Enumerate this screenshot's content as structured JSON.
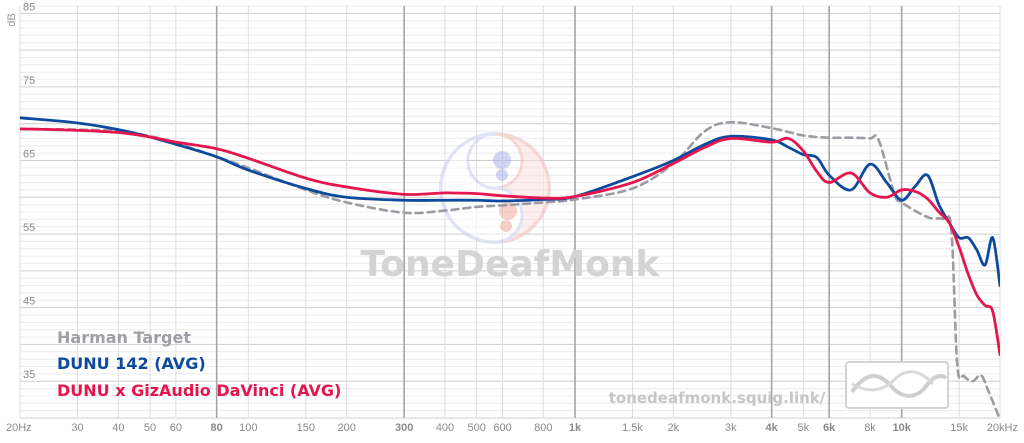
{
  "chart_data": {
    "type": "line",
    "ylabel": "dB",
    "xscale": "log",
    "xlim": [
      20,
      20000
    ],
    "ylim": [
      30,
      86
    ],
    "y_ticks": [
      85,
      75,
      65,
      55,
      45,
      35
    ],
    "x_ticks": [
      {
        "value": 20,
        "label": "20Hz",
        "bold": false
      },
      {
        "value": 30,
        "label": "30",
        "bold": false
      },
      {
        "value": 40,
        "label": "40",
        "bold": false
      },
      {
        "value": 50,
        "label": "50",
        "bold": false
      },
      {
        "value": 60,
        "label": "60",
        "bold": false
      },
      {
        "value": 80,
        "label": "80",
        "bold": true
      },
      {
        "value": 100,
        "label": "100",
        "bold": false
      },
      {
        "value": 150,
        "label": "150",
        "bold": false
      },
      {
        "value": 200,
        "label": "200",
        "bold": false
      },
      {
        "value": 300,
        "label": "300",
        "bold": true
      },
      {
        "value": 400,
        "label": "400",
        "bold": false
      },
      {
        "value": 500,
        "label": "500",
        "bold": false
      },
      {
        "value": 600,
        "label": "600",
        "bold": false
      },
      {
        "value": 800,
        "label": "800",
        "bold": false
      },
      {
        "value": 1000,
        "label": "1k",
        "bold": true
      },
      {
        "value": 1500,
        "label": "1.5k",
        "bold": false
      },
      {
        "value": 2000,
        "label": "2k",
        "bold": false
      },
      {
        "value": 3000,
        "label": "3k",
        "bold": false
      },
      {
        "value": 4000,
        "label": "4k",
        "bold": true
      },
      {
        "value": 5000,
        "label": "5k",
        "bold": false
      },
      {
        "value": 6000,
        "label": "6k",
        "bold": true
      },
      {
        "value": 8000,
        "label": "8k",
        "bold": false
      },
      {
        "value": 10000,
        "label": "10k",
        "bold": true
      },
      {
        "value": 15000,
        "label": "15k",
        "bold": false
      },
      {
        "value": 20000,
        "label": "20kHz",
        "bold": false
      }
    ],
    "grid": true,
    "legend_position": "bottom-left",
    "series": [
      {
        "name": "Harman Target",
        "color": "#9e9aa2",
        "style": "dashed",
        "points": [
          [
            20,
            69.3
          ],
          [
            30,
            69.2
          ],
          [
            40,
            69.0
          ],
          [
            50,
            68.3
          ],
          [
            60,
            67.4
          ],
          [
            80,
            65.5
          ],
          [
            100,
            64.0
          ],
          [
            150,
            61.0
          ],
          [
            200,
            59.3
          ],
          [
            300,
            57.9
          ],
          [
            400,
            58.2
          ],
          [
            500,
            58.7
          ],
          [
            600,
            58.9
          ],
          [
            800,
            59.3
          ],
          [
            1000,
            59.7
          ],
          [
            1500,
            61.2
          ],
          [
            2000,
            64.6
          ],
          [
            2500,
            69.0
          ],
          [
            3000,
            70.2
          ],
          [
            4000,
            69.4
          ],
          [
            5000,
            68.4
          ],
          [
            6000,
            68.1
          ],
          [
            7000,
            68.1
          ],
          [
            8000,
            68.0
          ],
          [
            8500,
            67.8
          ],
          [
            9500,
            60.5
          ],
          [
            10000,
            59.3
          ],
          [
            12000,
            57.3
          ],
          [
            13500,
            57.0
          ],
          [
            14200,
            55.5
          ],
          [
            14800,
            37.2
          ],
          [
            15500,
            35.7
          ],
          [
            16500,
            35.0
          ],
          [
            17500,
            35.8
          ],
          [
            18500,
            33.5
          ],
          [
            20000,
            29.8
          ]
        ]
      },
      {
        "name": "DUNU 142 (AVG)",
        "color": "#0d4a9e",
        "style": "solid",
        "points": [
          [
            20,
            70.8
          ],
          [
            30,
            70.1
          ],
          [
            40,
            69.2
          ],
          [
            50,
            68.2
          ],
          [
            60,
            67.2
          ],
          [
            80,
            65.5
          ],
          [
            100,
            63.7
          ],
          [
            150,
            61.2
          ],
          [
            200,
            60.0
          ],
          [
            300,
            59.6
          ],
          [
            400,
            59.6
          ],
          [
            500,
            59.6
          ],
          [
            600,
            59.5
          ],
          [
            800,
            59.7
          ],
          [
            1000,
            60.1
          ],
          [
            1500,
            62.8
          ],
          [
            2000,
            65.0
          ],
          [
            2500,
            67.2
          ],
          [
            3000,
            68.3
          ],
          [
            4000,
            67.8
          ],
          [
            4500,
            66.8
          ],
          [
            5000,
            65.8
          ],
          [
            5500,
            65.4
          ],
          [
            6000,
            63.0
          ],
          [
            7000,
            61.0
          ],
          [
            8000,
            64.5
          ],
          [
            9000,
            62.0
          ],
          [
            10000,
            59.6
          ],
          [
            11000,
            61.5
          ],
          [
            12000,
            63.0
          ],
          [
            13000,
            59.0
          ],
          [
            14000,
            56.5
          ],
          [
            15000,
            54.5
          ],
          [
            16000,
            54.5
          ],
          [
            17000,
            52.8
          ],
          [
            18000,
            50.8
          ],
          [
            19000,
            54.5
          ],
          [
            20000,
            48.0
          ]
        ]
      },
      {
        "name": "DUNU x GizAudio DaVinci (AVG)",
        "color": "#e5164d",
        "style": "solid",
        "points": [
          [
            20,
            69.3
          ],
          [
            30,
            69.1
          ],
          [
            40,
            68.8
          ],
          [
            50,
            68.2
          ],
          [
            60,
            67.5
          ],
          [
            80,
            66.6
          ],
          [
            100,
            65.3
          ],
          [
            150,
            62.6
          ],
          [
            200,
            61.4
          ],
          [
            300,
            60.4
          ],
          [
            400,
            60.6
          ],
          [
            500,
            60.5
          ],
          [
            600,
            60.2
          ],
          [
            800,
            59.9
          ],
          [
            1000,
            60.1
          ],
          [
            1500,
            62.0
          ],
          [
            2000,
            64.6
          ],
          [
            2500,
            66.8
          ],
          [
            3000,
            68.0
          ],
          [
            4000,
            67.5
          ],
          [
            4500,
            68.0
          ],
          [
            5000,
            66.3
          ],
          [
            5500,
            63.5
          ],
          [
            6000,
            62.0
          ],
          [
            7000,
            63.3
          ],
          [
            8000,
            60.6
          ],
          [
            9000,
            60.0
          ],
          [
            10000,
            61.0
          ],
          [
            11000,
            60.8
          ],
          [
            12000,
            59.8
          ],
          [
            13000,
            58.0
          ],
          [
            14000,
            56.5
          ],
          [
            15000,
            53.2
          ],
          [
            16000,
            49.5
          ],
          [
            17000,
            46.7
          ],
          [
            18000,
            45.3
          ],
          [
            19000,
            44.5
          ],
          [
            20000,
            38.6
          ]
        ]
      }
    ]
  },
  "watermark": {
    "text": "ToneDeafMonk",
    "url": "tonedeafmonk.squig.link/"
  },
  "colors": {
    "harman": "#9e9aa2",
    "dunu142": "#0d4a9e",
    "davinci": "#e5164d",
    "grid_major": "#a5a5a5",
    "grid_minor": "#dedede"
  }
}
